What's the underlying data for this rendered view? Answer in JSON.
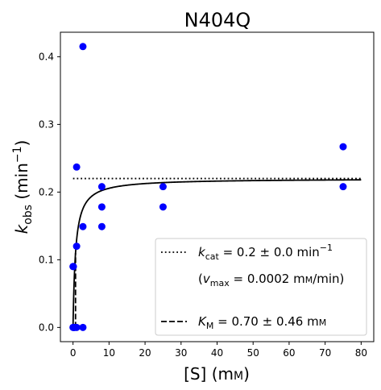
{
  "chart_data": {
    "type": "scatter",
    "title": "N404Q",
    "xlabel": "[S] (mM)",
    "ylabel": "k_obs (min^-1)",
    "xlim": [
      -3.5,
      83.5
    ],
    "ylim": [
      -0.021,
      0.4362
    ],
    "x_ticks": [
      0,
      10,
      20,
      30,
      40,
      50,
      60,
      70,
      80
    ],
    "y_ticks": [
      0.0,
      0.1,
      0.2,
      0.3,
      0.4
    ],
    "x_tick_labels": [
      "0",
      "10",
      "20",
      "30",
      "40",
      "50",
      "60",
      "70",
      "80"
    ],
    "y_tick_labels": [
      "0.0",
      "0.1",
      "0.2",
      "0.3",
      "0.4"
    ],
    "grid": false,
    "legend_position": "bottom-right",
    "points": {
      "color": "#0000ff",
      "x": [
        0,
        0,
        0.1,
        0.1,
        0.25,
        0.5,
        1,
        1,
        1,
        2.75,
        2.75,
        2.75,
        8,
        8,
        8,
        25,
        25,
        75,
        75
      ],
      "y": [
        0,
        0.09,
        0,
        0.09,
        0,
        0,
        0.237,
        0.12,
        0,
        0.415,
        0.149,
        0,
        0.208,
        0.178,
        0.149,
        0.208,
        0.178,
        0.267,
        0.208
      ]
    },
    "fit": {
      "kcat": 0.22,
      "Km": 0.7,
      "x_range": [
        0,
        80
      ],
      "color": "#000000"
    },
    "kcat_line": {
      "y": 0.22,
      "x_range": [
        0,
        80
      ],
      "style": "dotted"
    },
    "km_line": {
      "x": 0.7,
      "y_range": [
        0,
        0.11
      ],
      "style": "dashed"
    },
    "legend": {
      "entries": [
        {
          "style": "dotted",
          "main": "k",
          "sub": "cat",
          "rest": " = 0.2 ± 0.0 min",
          "sup": "−1"
        },
        {
          "style": "none",
          "pre": "(v",
          "sub": "max",
          "rest": " = 0.0002 mM/min)"
        },
        {
          "style": "dashed",
          "main": "K",
          "sub": "M",
          "rest": " = 0.70 ± 0.46 mM"
        }
      ]
    }
  }
}
